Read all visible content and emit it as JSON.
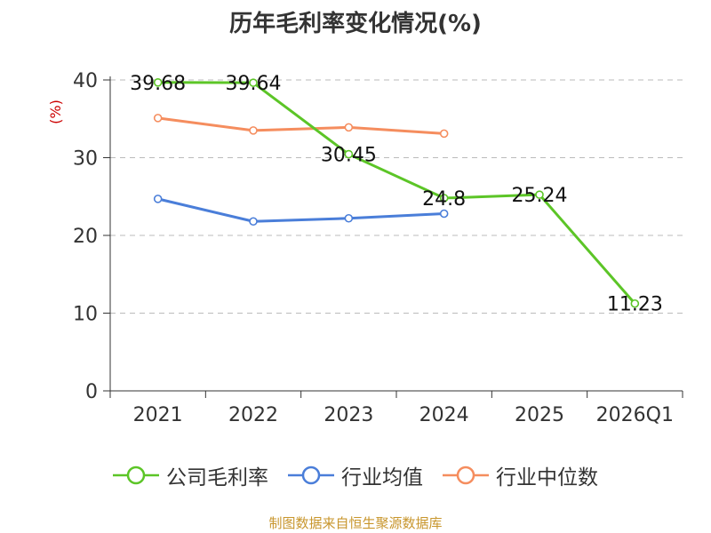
{
  "title": "历年毛利率变化情况(%)",
  "source": "制图数据来自恒生聚源数据库",
  "colors": {
    "company": "#5cc527",
    "avg": "#4a7ed9",
    "median": "#f58d5e",
    "axis": "#333333",
    "grid": "#bbbbbb",
    "unit": "#cc0000"
  },
  "chart_data": {
    "type": "line",
    "ylabel": "(%)",
    "ylim": [
      0,
      40
    ],
    "yticks": [
      "0",
      "10",
      "20",
      "30",
      "40"
    ],
    "categories": [
      "2021",
      "2022",
      "2023",
      "2024",
      "2025",
      "2026Q1"
    ],
    "grid": true,
    "legend_position": "bottom",
    "series": [
      {
        "name": "公司毛利率",
        "key": "company",
        "values": [
          39.68,
          39.64,
          30.45,
          24.8,
          25.24,
          11.23
        ],
        "labels": [
          "39.68",
          "39.64",
          "30.45",
          "24.8",
          "25.24",
          "11.23"
        ]
      },
      {
        "name": "行业均值",
        "key": "avg",
        "values": [
          24.7,
          21.8,
          22.2,
          22.8,
          null,
          null
        ]
      },
      {
        "name": "行业中位数",
        "key": "median",
        "values": [
          35.1,
          33.5,
          33.9,
          33.1,
          null,
          null
        ]
      }
    ]
  }
}
